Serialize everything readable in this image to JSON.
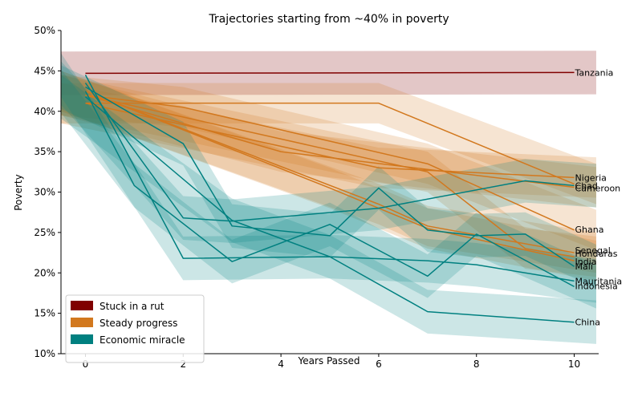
{
  "chart_data": {
    "type": "line",
    "title": "Trajectories starting from ~40% in poverty",
    "xlabel": "Years Passed",
    "ylabel": "Poverty",
    "xlim": [
      -0.5,
      10.5
    ],
    "ylim": [
      10,
      50
    ],
    "xticks": [
      0,
      2,
      4,
      6,
      8,
      10
    ],
    "yticks": [
      10,
      15,
      20,
      25,
      30,
      35,
      40,
      45,
      50
    ],
    "ytick_labels": [
      "10%",
      "15%",
      "20%",
      "25%",
      "30%",
      "35%",
      "40%",
      "45%",
      "50%"
    ],
    "grid": false,
    "legend_position": "lower-left",
    "legend": [
      {
        "label": "Stuck in a rut",
        "color": "#800000"
      },
      {
        "label": "Steady progress",
        "color": "#d2781e"
      },
      {
        "label": "Economic miracle",
        "color": "#008080"
      }
    ],
    "band_alpha": {
      "rut": 0.22,
      "steady": 0.2,
      "miracle": 0.2
    },
    "series": [
      {
        "name": "Tanzania",
        "group": "rut",
        "color": "#800000",
        "x": [
          0,
          10
        ],
        "y": [
          44.7,
          44.8
        ],
        "band": 2.7
      },
      {
        "name": "Nigeria",
        "group": "steady",
        "color": "#d2781e",
        "x": [
          0,
          6,
          10
        ],
        "y": [
          41.0,
          33.0,
          31.8
        ],
        "band": 2.5
      },
      {
        "name": "Chad",
        "group": "steady",
        "color": "#d2781e",
        "x": [
          0,
          6,
          10
        ],
        "y": [
          41.0,
          41.0,
          31.0
        ],
        "band": 2.5
      },
      {
        "name": "Cameroon",
        "group": "steady",
        "color": "#d2781e",
        "x": [
          0,
          4,
          10
        ],
        "y": [
          42.0,
          35.0,
          30.6
        ],
        "band": 2.5
      },
      {
        "name": "Ghana",
        "group": "steady",
        "color": "#d2781e",
        "x": [
          0,
          2,
          7,
          10
        ],
        "y": [
          42.0,
          40.5,
          33.5,
          25.3
        ],
        "band": 2.5
      },
      {
        "name": "Senegal",
        "group": "steady",
        "color": "#d2781e",
        "x": [
          0,
          6,
          7,
          10
        ],
        "y": [
          42.5,
          28.5,
          25.8,
          22.5
        ],
        "band": 2.5
      },
      {
        "name": "Honduras",
        "group": "steady",
        "color": "#d2781e",
        "x": [
          0,
          7,
          9,
          10
        ],
        "y": [
          42.0,
          32.5,
          23.0,
          22.0
        ],
        "band": 2.5
      },
      {
        "name": "India",
        "group": "steady",
        "color": "#d2781e",
        "x": [
          0,
          5,
          7,
          10
        ],
        "y": [
          42.5,
          30.5,
          25.5,
          21.5
        ],
        "band": 2.5
      },
      {
        "name": "Mali",
        "group": "miracle",
        "color": "#008080",
        "x": [
          0,
          2,
          3,
          6,
          9,
          10
        ],
        "y": [
          43.5,
          26.8,
          26.4,
          28.0,
          31.4,
          30.8
        ],
        "band": 2.7
      },
      {
        "name": "Mauritania",
        "group": "miracle",
        "color": "#008080",
        "x": [
          0,
          2,
          3,
          5,
          6,
          7,
          8,
          9,
          10
        ],
        "y": [
          43.0,
          36.0,
          25.8,
          24.6,
          30.5,
          25.3,
          24.6,
          24.8,
          20.8
        ],
        "band": 2.7
      },
      {
        "name": "Indonesia",
        "group": "miracle",
        "color": "#008080",
        "x": [
          0,
          1,
          3,
          5,
          7,
          8,
          10
        ],
        "y": [
          42.5,
          30.8,
          21.4,
          26.0,
          19.6,
          24.8,
          18.3
        ],
        "band": 2.7
      },
      {
        "name": "China",
        "group": "miracle",
        "color": "#008080",
        "x": [
          0,
          2,
          5,
          7,
          10
        ],
        "y": [
          44.5,
          21.8,
          22.0,
          15.2,
          13.9
        ],
        "band": 2.7
      },
      {
        "name": "",
        "group": "miracle",
        "color": "#008080",
        "x": [
          0,
          3,
          5,
          7,
          8,
          10
        ],
        "y": [
          41.8,
          26.5,
          22.0,
          21.5,
          21.0,
          19.0
        ],
        "band": 2.7
      }
    ],
    "labels": [
      {
        "text": "Tanzania",
        "x": 10,
        "y": 44.8
      },
      {
        "text": "Nigeria",
        "x": 10,
        "y": 31.8
      },
      {
        "text": "Chad",
        "x": 10,
        "y": 30.8
      },
      {
        "text": "Cameroon",
        "x": 10,
        "y": 30.5
      },
      {
        "text": "Ghana",
        "x": 10,
        "y": 25.4
      },
      {
        "text": "Senegal",
        "x": 10,
        "y": 22.8
      },
      {
        "text": "Honduras",
        "x": 10,
        "y": 22.4
      },
      {
        "text": "India",
        "x": 10,
        "y": 21.4
      },
      {
        "text": "Mali",
        "x": 10,
        "y": 20.8
      },
      {
        "text": "Mauritania",
        "x": 10,
        "y": 19.0
      },
      {
        "text": "Indonesia",
        "x": 10,
        "y": 18.4
      },
      {
        "text": "China",
        "x": 10,
        "y": 13.9
      }
    ]
  }
}
